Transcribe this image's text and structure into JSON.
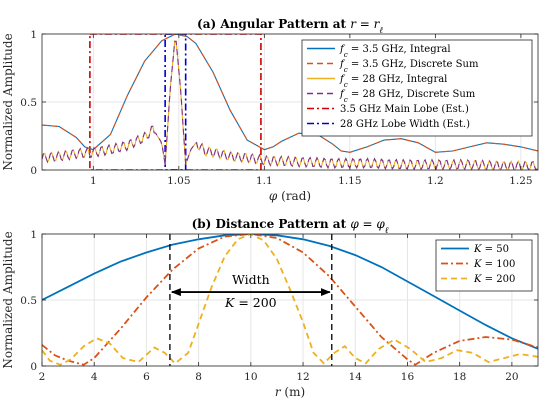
{
  "chart_data": [
    {
      "type": "line",
      "title_prefix": "(a) Angular Pattern at",
      "title_math": "r = r",
      "title_sub": "ℓ",
      "xlabel_sym": "φ",
      "xlabel_unit": "(rad)",
      "ylabel": "Normalized Amplitude",
      "xlim": [
        0.97,
        1.26
      ],
      "ylim": [
        0,
        1
      ],
      "xticks": [
        1.0,
        1.05,
        1.1,
        1.15,
        1.2,
        1.25
      ],
      "xtick_labels": [
        "1",
        "1.05",
        "1.1",
        "1.15",
        "1.2",
        "1.25"
      ],
      "yticks": [
        0,
        0.5,
        1
      ],
      "ytick_labels": [
        "0",
        "0.5",
        "1"
      ],
      "grid": true,
      "legend_position": "top-right",
      "legend": [
        {
          "sym": "f",
          "sub": "c",
          "rest": " = 3.5 GHz, Integral",
          "color": "#0072BD",
          "dash": "solid"
        },
        {
          "sym": "f",
          "sub": "c",
          "rest": " = 3.5 GHz, Discrete Sum",
          "color": "#D95319",
          "dash": "dashed"
        },
        {
          "sym": "f",
          "sub": "c",
          "rest": " = 28 GHz, Integral",
          "color": "#EDB120",
          "dash": "solid"
        },
        {
          "sym": "f",
          "sub": "c",
          "rest": " = 28 GHz, Discrete Sum",
          "color": "#7E2F8E",
          "dash": "dashed"
        },
        {
          "sym": "",
          "sub": "",
          "rest": "3.5 GHz Main Lobe (Est.)",
          "color": "#D00000",
          "dash": "dashdot"
        },
        {
          "sym": "",
          "sub": "",
          "rest": "28 GHz Lobe Width (Est.)",
          "color": "#0000CC",
          "dash": "dashdot"
        }
      ],
      "series": [
        {
          "color": "#0072BD",
          "dash": "solid",
          "x": [
            0.97,
            0.98,
            0.99,
            0.995,
            1.0,
            1.01,
            1.02,
            1.03,
            1.04,
            1.048,
            1.055,
            1.06,
            1.07,
            1.08,
            1.09,
            1.1,
            1.105,
            1.11,
            1.12,
            1.13,
            1.14,
            1.145,
            1.15,
            1.16,
            1.17,
            1.18,
            1.19,
            1.2,
            1.21,
            1.22,
            1.23,
            1.24,
            1.25,
            1.26
          ],
          "y": [
            0.33,
            0.32,
            0.24,
            0.17,
            0.15,
            0.26,
            0.55,
            0.8,
            0.95,
            1.0,
            0.98,
            0.93,
            0.72,
            0.44,
            0.22,
            0.15,
            0.17,
            0.21,
            0.27,
            0.27,
            0.19,
            0.14,
            0.13,
            0.17,
            0.22,
            0.23,
            0.2,
            0.13,
            0.14,
            0.17,
            0.2,
            0.19,
            0.17,
            0.14
          ]
        },
        {
          "color": "#D95319",
          "dash": "dashed",
          "x": [
            0.97,
            0.98,
            0.99,
            0.995,
            1.0,
            1.01,
            1.02,
            1.03,
            1.04,
            1.048,
            1.055,
            1.06,
            1.07,
            1.08,
            1.09,
            1.1,
            1.105,
            1.11,
            1.12,
            1.13,
            1.14,
            1.145,
            1.15,
            1.16,
            1.17,
            1.18,
            1.19,
            1.2,
            1.21,
            1.22,
            1.23,
            1.24,
            1.25,
            1.26
          ],
          "y": [
            0.33,
            0.32,
            0.24,
            0.17,
            0.15,
            0.26,
            0.55,
            0.8,
            0.95,
            1.0,
            0.98,
            0.93,
            0.72,
            0.44,
            0.22,
            0.15,
            0.17,
            0.21,
            0.27,
            0.27,
            0.19,
            0.14,
            0.13,
            0.17,
            0.22,
            0.23,
            0.2,
            0.13,
            0.14,
            0.17,
            0.2,
            0.19,
            0.17,
            0.14
          ]
        },
        {
          "color": "#EDB120",
          "dash": "solid",
          "x": [
            0.97,
            0.98,
            0.99,
            1.0,
            1.01,
            1.02,
            1.03,
            1.035,
            1.04,
            1.042,
            1.045,
            1.048,
            1.051,
            1.054,
            1.057,
            1.06,
            1.065,
            1.07,
            1.08,
            1.09,
            1.1,
            1.12,
            1.14,
            1.16,
            1.18,
            1.2,
            1.22,
            1.24,
            1.26
          ],
          "y": [
            0.09,
            0.1,
            0.12,
            0.13,
            0.15,
            0.18,
            0.24,
            0.3,
            0.2,
            0.04,
            0.6,
            1.0,
            0.6,
            0.04,
            0.15,
            0.2,
            0.14,
            0.13,
            0.1,
            0.09,
            0.07,
            0.06,
            0.05,
            0.05,
            0.04,
            0.04,
            0.04,
            0.03,
            0.03
          ],
          "ripple": 0.035,
          "ripple_period": 0.0042
        },
        {
          "color": "#7E2F8E",
          "dash": "dashed",
          "x": [
            0.97,
            0.98,
            0.99,
            1.0,
            1.01,
            1.02,
            1.03,
            1.035,
            1.04,
            1.042,
            1.045,
            1.048,
            1.051,
            1.054,
            1.057,
            1.06,
            1.065,
            1.07,
            1.08,
            1.09,
            1.1,
            1.12,
            1.14,
            1.16,
            1.18,
            1.2,
            1.22,
            1.24,
            1.26
          ],
          "y": [
            0.09,
            0.1,
            0.12,
            0.13,
            0.15,
            0.18,
            0.24,
            0.3,
            0.2,
            0.04,
            0.6,
            1.0,
            0.6,
            0.04,
            0.15,
            0.2,
            0.14,
            0.13,
            0.1,
            0.09,
            0.07,
            0.06,
            0.05,
            0.05,
            0.04,
            0.04,
            0.04,
            0.03,
            0.03
          ],
          "ripple": 0.035,
          "ripple_period": 0.0042
        }
      ],
      "rects": [
        {
          "x0": 0.998,
          "x1": 1.098,
          "y0": 0,
          "y1": 1,
          "color": "#D00000"
        },
        {
          "x0": 1.042,
          "x1": 1.054,
          "y0": 0,
          "y1": 1,
          "color": "#0000CC"
        }
      ]
    },
    {
      "type": "line",
      "title_prefix": "(b) Distance Pattern at",
      "title_math": "φ = φ",
      "title_sub": "ℓ",
      "xlabel_sym": "r",
      "xlabel_unit": "(m)",
      "ylabel": "Normalized Amplitude",
      "xlim": [
        2,
        21
      ],
      "ylim": [
        0,
        1
      ],
      "xticks": [
        2,
        4,
        6,
        8,
        10,
        12,
        14,
        16,
        18,
        20
      ],
      "xtick_labels": [
        "2",
        "4",
        "6",
        "8",
        "10",
        "12",
        "14",
        "16",
        "18",
        "20"
      ],
      "yticks": [
        0,
        0.5,
        1
      ],
      "ytick_labels": [
        "0",
        "0.5",
        "1"
      ],
      "grid": true,
      "legend_position": "top-right",
      "legend": [
        {
          "sym": "K",
          "rest": " = 50",
          "color": "#0072BD",
          "dash": "solid"
        },
        {
          "sym": "K",
          "rest": " = 100",
          "color": "#D95319",
          "dash": "dashdot"
        },
        {
          "sym": "K",
          "rest": " = 200",
          "color": "#EDB120",
          "dash": "dashed"
        }
      ],
      "series": [
        {
          "name": "K = 50",
          "color": "#0072BD",
          "dash": "solid",
          "x": [
            2,
            3,
            4,
            5,
            6,
            7,
            8,
            9,
            10,
            11,
            12,
            13,
            14,
            15,
            16,
            17,
            18,
            19,
            20,
            21
          ],
          "y": [
            0.5,
            0.6,
            0.7,
            0.79,
            0.86,
            0.92,
            0.96,
            0.99,
            1.0,
            0.99,
            0.96,
            0.91,
            0.84,
            0.75,
            0.64,
            0.53,
            0.42,
            0.31,
            0.21,
            0.13
          ]
        },
        {
          "name": "K = 100",
          "color": "#D95319",
          "dash": "dashdot",
          "x": [
            2,
            2.5,
            3,
            3.6,
            4,
            5,
            6,
            7,
            8,
            9,
            10,
            11,
            12,
            13,
            14,
            15,
            16,
            16.3,
            17,
            18,
            19,
            20,
            21
          ],
          "y": [
            0.16,
            0.08,
            0.04,
            0.01,
            0.06,
            0.28,
            0.52,
            0.73,
            0.89,
            0.98,
            1.0,
            0.97,
            0.86,
            0.68,
            0.45,
            0.22,
            0.05,
            0.01,
            0.1,
            0.19,
            0.22,
            0.2,
            0.14
          ]
        },
        {
          "name": "K = 200",
          "color": "#EDB120",
          "dash": "dashed",
          "x": [
            2,
            2.3,
            2.7,
            3.1,
            3.6,
            4.1,
            4.6,
            5.1,
            5.7,
            6.3,
            6.7,
            7.1,
            7.6,
            8,
            8.5,
            9,
            9.5,
            10,
            10.5,
            11,
            11.5,
            12,
            12.4,
            12.8,
            13.2,
            13.6,
            14.0,
            14.4,
            14.9,
            15.5,
            16.1,
            16.7,
            17.3,
            17.9,
            18.5,
            19.1,
            19.7,
            20.3,
            21
          ],
          "y": [
            0.12,
            0.04,
            0.01,
            0.05,
            0.15,
            0.21,
            0.17,
            0.06,
            0.03,
            0.14,
            0.1,
            0.02,
            0.1,
            0.32,
            0.6,
            0.83,
            0.96,
            1.0,
            0.95,
            0.81,
            0.58,
            0.33,
            0.1,
            0.02,
            0.1,
            0.15,
            0.06,
            0.02,
            0.13,
            0.2,
            0.13,
            0.03,
            0.06,
            0.12,
            0.1,
            0.03,
            0.06,
            0.09,
            0.07
          ]
        }
      ],
      "vlines": [
        {
          "x": 6.9,
          "color": "#000000"
        },
        {
          "x": 13.1,
          "color": "#000000"
        }
      ],
      "arrow": {
        "x0": 6.9,
        "x1": 13.1,
        "y": 0.56
      },
      "annotation_line1": "Width",
      "annotation_sym": "K",
      "annotation_rest": " = 200"
    }
  ]
}
